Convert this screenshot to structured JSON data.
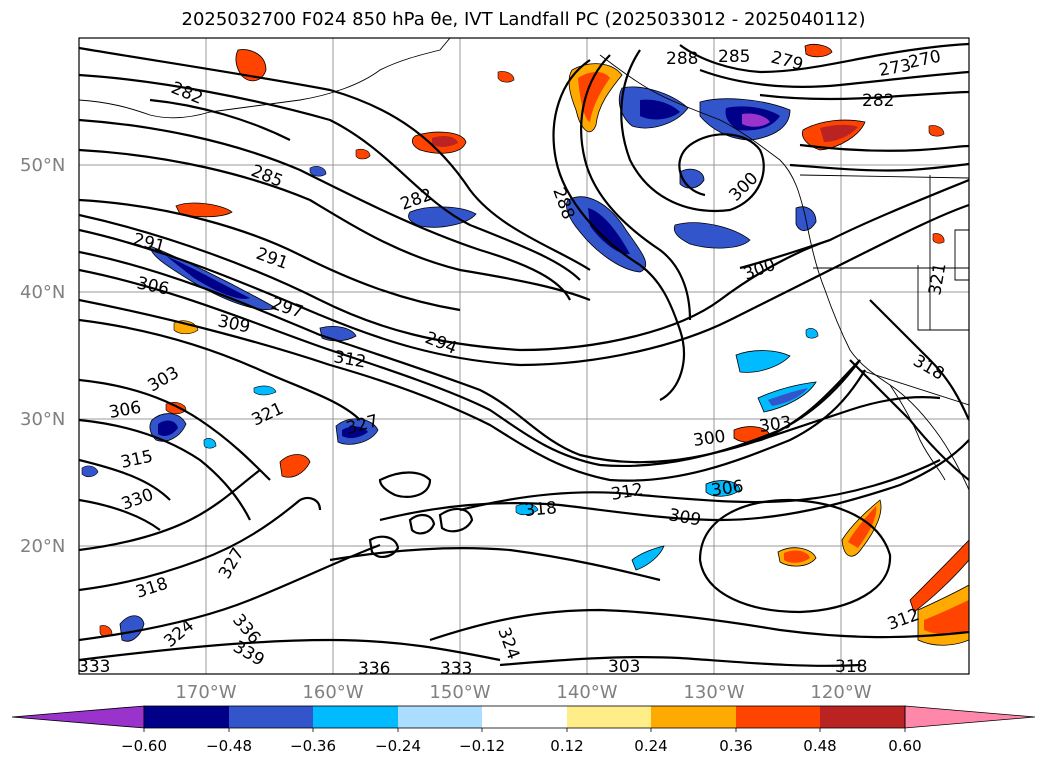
{
  "title": "2025032700 F024 850 hPa θe, IVT Landfall PC (2025033012 - 2025040112)",
  "lat_labels": [
    "50°N",
    "40°N",
    "30°N",
    "20°N"
  ],
  "lon_labels": [
    "170°W",
    "160°W",
    "150°W",
    "140°W",
    "130°W",
    "120°W"
  ],
  "contour_labels": [
    "282",
    "285",
    "282",
    "288",
    "291",
    "291",
    "306",
    "297",
    "309",
    "312",
    "294",
    "303",
    "306",
    "321",
    "315",
    "330",
    "327",
    "318",
    "324",
    "336",
    "339",
    "333",
    "318",
    "312",
    "306",
    "309",
    "300",
    "303",
    "300",
    "300",
    "288",
    "285",
    "279",
    "273",
    "270",
    "282",
    "318",
    "312",
    "318",
    "324",
    "327",
    "336",
    "333",
    "303",
    "321"
  ],
  "colorbar": {
    "ticks": [
      "−0.60",
      "−0.48",
      "−0.36",
      "−0.24",
      "−0.12",
      "0.12",
      "0.24",
      "0.36",
      "0.48",
      "0.60"
    ],
    "colors": [
      "#9933cc",
      "#000088",
      "#3355cc",
      "#00bbff",
      "#aaddff",
      "#ffffff",
      "#ffee88",
      "#ffaa00",
      "#ff4400",
      "#bb2222",
      "#ff88aa"
    ]
  }
}
